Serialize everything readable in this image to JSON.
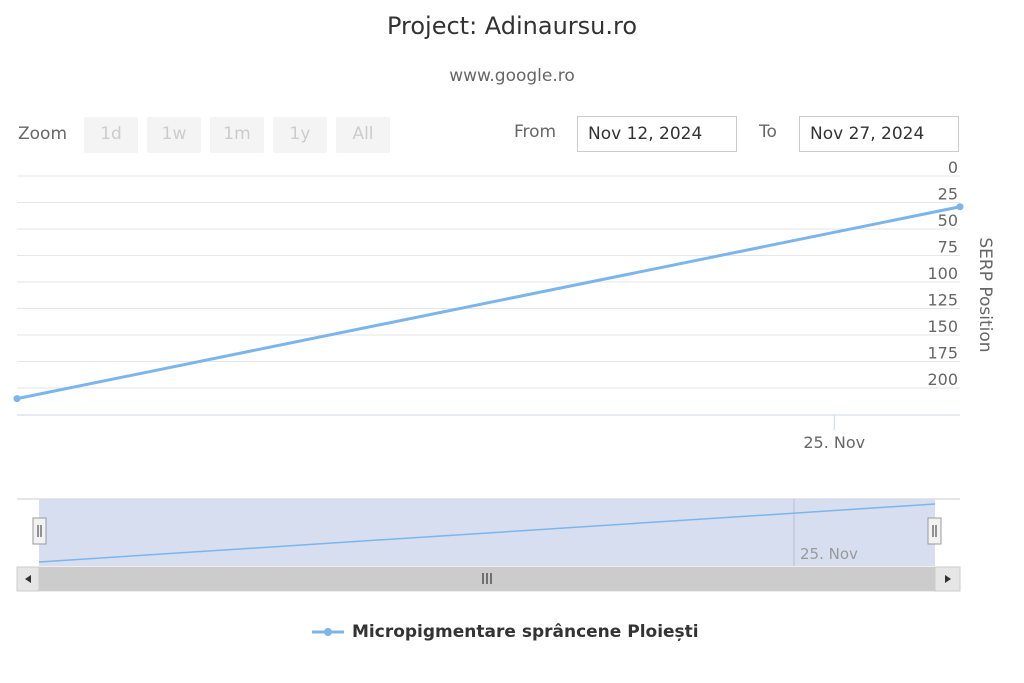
{
  "header": {
    "title": "Project: Adinaursu.ro",
    "subtitle": "www.google.ro"
  },
  "range_selector": {
    "zoom_label": "Zoom",
    "buttons": [
      "1d",
      "1w",
      "1m",
      "1y",
      "All"
    ],
    "from_label": "From",
    "from_value": "Nov 12, 2024",
    "to_label": "To",
    "to_value": "Nov 27, 2024"
  },
  "colors": {
    "series": "#7cb5ec",
    "navigator_fill": "#d2daee",
    "scrollbar": "#cccccc"
  },
  "chart_data": {
    "type": "line",
    "title": "Project: Adinaursu.ro",
    "subtitle": "www.google.ro",
    "xlabel": "",
    "ylabel": "SERP Position",
    "y_reversed": true,
    "ylim": [
      0,
      210
    ],
    "y_ticks": [
      0,
      25,
      50,
      75,
      100,
      125,
      150,
      175,
      200
    ],
    "x_ticks": [
      "25. Nov"
    ],
    "series": [
      {
        "name": "Micropigmentare sprâncene Ploiești",
        "points": [
          {
            "x": "2024-11-12",
            "y": 210
          },
          {
            "x": "2024-11-27",
            "y": 29
          }
        ]
      }
    ],
    "navigator": {
      "tick_label": "25. Nov"
    },
    "legend_position": "bottom-center",
    "grid": true
  }
}
